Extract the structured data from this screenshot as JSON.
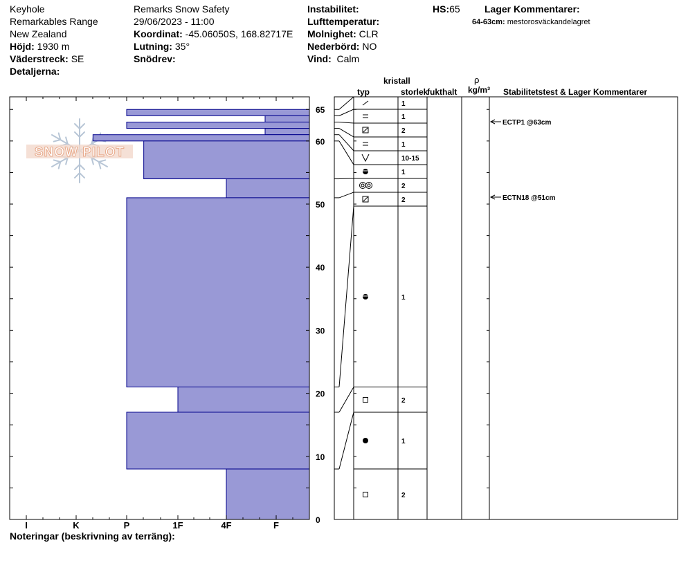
{
  "header": {
    "location": "Keyhole",
    "range": "Remarkables Range",
    "country": "New Zealand",
    "elevation": {
      "label": "Höjd:",
      "value": "1930 m"
    },
    "aspect": {
      "label": "Väderstreck:",
      "value": "SE"
    },
    "details": {
      "label": "Detaljerna:",
      "value": ""
    },
    "observer": "Remarks Snow Safety",
    "datetime": "29/06/2023 - 11:00",
    "coordinates": {
      "label": "Koordinat:",
      "value": "-45.06050S, 168.82717E"
    },
    "slope": {
      "label": "Lutning:",
      "value": "35°"
    },
    "drift": {
      "label": "Snödrev:",
      "value": ""
    },
    "instability": {
      "label": "Instabilitet:",
      "value": ""
    },
    "air_temp": {
      "label": "Lufttemperatur:",
      "value": ""
    },
    "sky": {
      "label": "Molnighet:",
      "value": "CLR"
    },
    "precip": {
      "label": "Nederbörd:",
      "value": "NO"
    },
    "wind": {
      "label": "Vind:",
      "value": "Calm"
    },
    "hs": {
      "label": "HS:",
      "value": "65"
    },
    "layer_comments": {
      "label": "Lager Kommentarer:",
      "items": [
        {
          "range": "64-63cm:",
          "text": "mestorosväckandelagret"
        }
      ]
    }
  },
  "logo_text": "SNOW PILOT",
  "footer": {
    "notes_label": "Noteringar (beskrivning av terräng):"
  },
  "columns": {
    "type": "typ",
    "crystal": "kristall",
    "size": "storlek",
    "moisture": "fukthalt",
    "rho": "ρ",
    "density_unit": "kg/m³",
    "stability": "Stabilitetstest & Lager Kommentarer"
  },
  "colors": {
    "bar_fill": "#9999d6",
    "bar_edge": "#00008b",
    "logo": "#e8a98a"
  },
  "chart_data": {
    "type": "bar",
    "orientation": "horizontal",
    "y_axis": {
      "range": [
        0,
        67
      ],
      "ticks": [
        0,
        10,
        20,
        30,
        40,
        50,
        60,
        65
      ]
    },
    "hardness_scale": [
      "I",
      "K",
      "P",
      "1F",
      "4F",
      "F"
    ],
    "layers": [
      {
        "top": 65,
        "bottom": 64,
        "hardness": "P"
      },
      {
        "top": 64,
        "bottom": 63,
        "hardness": "F-"
      },
      {
        "top": 63,
        "bottom": 62,
        "hardness": "P"
      },
      {
        "top": 62,
        "bottom": 61,
        "hardness": "F-"
      },
      {
        "top": 61,
        "bottom": 60,
        "hardness": "K+"
      },
      {
        "top": 60,
        "bottom": 54,
        "hardness": "P+"
      },
      {
        "top": 54,
        "bottom": 51,
        "hardness": "4F"
      },
      {
        "top": 51,
        "bottom": 21,
        "hardness": "P"
      },
      {
        "top": 21,
        "bottom": 17,
        "hardness": "1F"
      },
      {
        "top": 17,
        "bottom": 8,
        "hardness": "P"
      },
      {
        "top": 8,
        "bottom": 0,
        "hardness": "4F"
      }
    ],
    "crystal_rows": [
      {
        "symbol": "slash",
        "size": "1"
      },
      {
        "symbol": "equal",
        "size": "1"
      },
      {
        "symbol": "box-slash",
        "size": "2"
      },
      {
        "symbol": "equal",
        "size": "1"
      },
      {
        "symbol": "v",
        "size": "10-15"
      },
      {
        "symbol": "half-disc",
        "size": "1"
      },
      {
        "symbol": "double-ring",
        "size": "2"
      },
      {
        "symbol": "box-slash",
        "size": "2"
      },
      {
        "symbol": "half-disc",
        "size": "1"
      },
      {
        "symbol": "square",
        "size": "2"
      },
      {
        "symbol": "dot",
        "size": "1"
      },
      {
        "symbol": "square",
        "size": "2"
      }
    ],
    "stability_tests": [
      {
        "text": "ECTP1 @63cm",
        "depth": 63
      },
      {
        "text": "ECTN18 @51cm",
        "depth": 51
      }
    ]
  }
}
